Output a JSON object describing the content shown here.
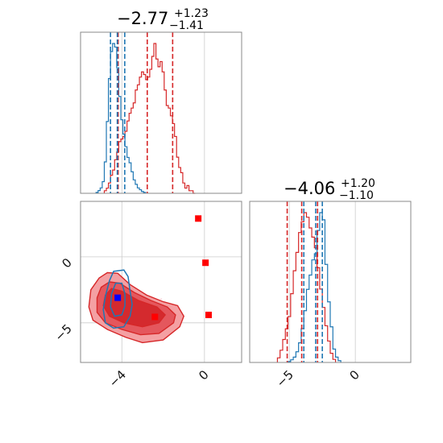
{
  "chart_data": [
    {
      "panel": "marginal-param-1",
      "type": "histogram",
      "title": {
        "main": "−2.77",
        "sup": "+1.23",
        "sub": "−1.41"
      },
      "xlim": [
        -6.0,
        1.8
      ],
      "grid": true,
      "series": [
        {
          "name": "",
          "color": "#d62728",
          "centers": [
            -4.8,
            -4.7,
            -4.6,
            -4.5,
            -4.4,
            -4.3,
            -4.2,
            -4.1,
            -4.0,
            -3.9,
            -3.8,
            -3.7,
            -3.6,
            -3.5,
            -3.4,
            -3.3,
            -3.2,
            -3.1,
            -3.0,
            -2.9,
            -2.8,
            -2.7,
            -2.6,
            -2.5,
            -2.4,
            -2.3,
            -2.2,
            -2.1,
            -2.0,
            -1.9,
            -1.8,
            -1.7,
            -1.6,
            -1.5,
            -1.4,
            -1.3,
            -1.2,
            -1.1,
            -1.0,
            -0.9,
            -0.8,
            -0.7,
            -0.6,
            -0.5
          ],
          "counts": [
            1,
            2,
            4,
            7,
            9,
            13,
            16,
            20,
            21,
            22,
            24,
            28,
            31,
            33,
            35,
            40,
            42,
            45,
            47,
            46,
            44,
            45,
            48,
            53,
            58,
            52,
            49,
            51,
            47,
            40,
            34,
            33,
            30,
            27,
            22,
            14,
            10,
            8,
            4,
            2,
            3,
            1,
            1,
            0
          ],
          "quantiles": [
            -4.18,
            -2.77,
            -1.54
          ]
        },
        {
          "name": "",
          "color": "#1f77b4",
          "centers": [
            -5.2,
            -5.1,
            -5.0,
            -4.9,
            -4.8,
            -4.7,
            -4.6,
            -4.5,
            -4.4,
            -4.3,
            -4.2,
            -4.1,
            -4.0,
            -3.9,
            -3.8,
            -3.7,
            -3.6,
            -3.5,
            -3.4,
            -3.3,
            -3.2,
            -3.1,
            -3.0,
            -2.9
          ],
          "counts": [
            1,
            3,
            6,
            13,
            35,
            80,
            128,
            158,
            167,
            163,
            140,
            108,
            82,
            66,
            52,
            40,
            34,
            24,
            15,
            10,
            6,
            4,
            2,
            1
          ],
          "quantiles": [
            -4.55,
            -4.22,
            -3.86
          ]
        }
      ]
    },
    {
      "panel": "joint-param-1-vs-param-2",
      "type": "contour-2d",
      "xlim": [
        -6.0,
        1.8
      ],
      "ylim": [
        -8.0,
        4.2
      ],
      "grid": true,
      "red_contours": [
        {
          "level": "outer",
          "points": [
            [
              -4.7,
              -1.2
            ],
            [
              -4.2,
              -1.25
            ],
            [
              -3.6,
              -2.1
            ],
            [
              -2.8,
              -2.9
            ],
            [
              -2.0,
              -3.4
            ],
            [
              -1.3,
              -3.7
            ],
            [
              -1.0,
              -4.5
            ],
            [
              -1.2,
              -5.3
            ],
            [
              -2.0,
              -6.3
            ],
            [
              -3.0,
              -6.5
            ],
            [
              -3.8,
              -6.1
            ],
            [
              -4.7,
              -5.5
            ],
            [
              -5.4,
              -4.8
            ],
            [
              -5.6,
              -3.8
            ],
            [
              -5.5,
              -2.5
            ],
            [
              -5.1,
              -1.6
            ]
          ]
        },
        {
          "level": "middle",
          "points": [
            [
              -4.6,
              -1.9
            ],
            [
              -4.1,
              -2.0
            ],
            [
              -3.4,
              -2.7
            ],
            [
              -2.6,
              -3.3
            ],
            [
              -1.8,
              -3.8
            ],
            [
              -1.4,
              -4.4
            ],
            [
              -1.5,
              -5.0
            ],
            [
              -2.2,
              -5.8
            ],
            [
              -3.1,
              -5.9
            ],
            [
              -4.0,
              -5.5
            ],
            [
              -4.8,
              -5.0
            ],
            [
              -5.2,
              -4.2
            ],
            [
              -5.2,
              -3.1
            ],
            [
              -5.0,
              -2.3
            ]
          ]
        },
        {
          "level": "inner",
          "points": [
            [
              -4.5,
              -2.4
            ],
            [
              -4.0,
              -2.6
            ],
            [
              -3.2,
              -3.3
            ],
            [
              -2.3,
              -3.8
            ],
            [
              -1.9,
              -4.4
            ],
            [
              -2.2,
              -5.0
            ],
            [
              -3.0,
              -5.3
            ],
            [
              -3.9,
              -5.0
            ],
            [
              -4.6,
              -4.5
            ],
            [
              -4.9,
              -3.7
            ],
            [
              -4.8,
              -2.9
            ]
          ]
        }
      ],
      "blue_contours": [
        {
          "level": "outer",
          "points": [
            [
              -4.4,
              -1.1
            ],
            [
              -3.9,
              -1.0
            ],
            [
              -3.7,
              -1.5
            ],
            [
              -3.6,
              -2.6
            ],
            [
              -3.5,
              -3.6
            ],
            [
              -3.6,
              -4.5
            ],
            [
              -3.9,
              -5.3
            ],
            [
              -4.4,
              -5.4
            ],
            [
              -4.8,
              -5.0
            ],
            [
              -4.9,
              -4.0
            ],
            [
              -4.8,
              -3.0
            ],
            [
              -4.6,
              -1.8
            ]
          ]
        },
        {
          "level": "inner",
          "points": [
            [
              -4.3,
              -2.0
            ],
            [
              -4.0,
              -2.0
            ],
            [
              -3.85,
              -2.8
            ],
            [
              -3.85,
              -3.7
            ],
            [
              -4.0,
              -4.4
            ],
            [
              -4.35,
              -4.5
            ],
            [
              -4.55,
              -3.8
            ],
            [
              -4.5,
              -2.8
            ]
          ]
        }
      ],
      "markers": [
        {
          "color": "#ff0000",
          "x": -0.3,
          "y": 2.9
        },
        {
          "color": "#ff0000",
          "x": 0.05,
          "y": -0.45
        },
        {
          "color": "#ff0000",
          "x": 3.4,
          "y": -1.3
        },
        {
          "color": "#ff0000",
          "x": 0.2,
          "y": -4.4
        },
        {
          "color": "#ff0000",
          "x": -2.4,
          "y": -4.55
        },
        {
          "color": "#0000ff",
          "x": -4.2,
          "y": -3.1
        }
      ],
      "xticks": [
        -4,
        0
      ],
      "yticks": [
        0,
        -5
      ]
    },
    {
      "panel": "marginal-param-2",
      "type": "histogram",
      "title": {
        "main": "−4.06",
        "sup": "+1.20",
        "sub": "−1.10"
      },
      "xlim": [
        -8.0,
        4.2
      ],
      "grid": true,
      "series": [
        {
          "name": "",
          "color": "#d62728",
          "centers": [
            -5.8,
            -5.6,
            -5.4,
            -5.2,
            -5.0,
            -4.8,
            -4.6,
            -4.4,
            -4.2,
            -4.0,
            -3.8,
            -3.6,
            -3.4,
            -3.2,
            -3.0,
            -2.8,
            -2.6,
            -2.4,
            -2.2,
            -2.0,
            -1.8,
            -1.6
          ],
          "counts": [
            3,
            8,
            15,
            22,
            30,
            45,
            60,
            72,
            85,
            92,
            98,
            95,
            88,
            82,
            75,
            62,
            48,
            36,
            24,
            14,
            6,
            2
          ],
          "quantiles": [
            -5.16,
            -4.06,
            -2.86
          ]
        },
        {
          "name": "",
          "color": "#1f77b4",
          "centers": [
            -5.0,
            -4.8,
            -4.6,
            -4.4,
            -4.2,
            -4.0,
            -3.8,
            -3.6,
            -3.4,
            -3.2,
            -3.0,
            -2.8,
            -2.6,
            -2.4,
            -2.2,
            -2.0,
            -1.8,
            -1.6,
            -1.4,
            -1.2
          ],
          "counts": [
            1,
            3,
            6,
            12,
            22,
            38,
            58,
            82,
            98,
            115,
            122,
            148,
            168,
            160,
            110,
            68,
            40,
            15,
            6,
            2
          ],
          "quantiles": [
            -3.9,
            -3.0,
            -2.5
          ]
        }
      ],
      "xticks": [
        -5,
        0
      ]
    }
  ]
}
